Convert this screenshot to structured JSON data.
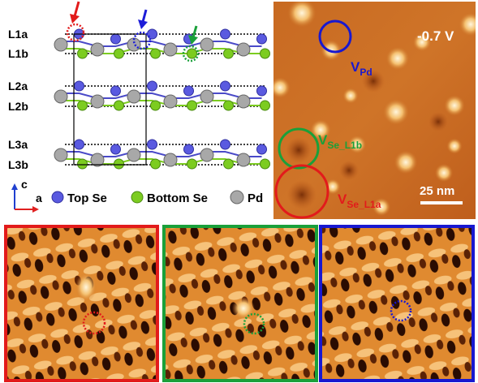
{
  "crystal": {
    "layer_labels": [
      "L1a",
      "L1b",
      "L2a",
      "L2b",
      "L3a",
      "L3b"
    ],
    "axes": [
      "c",
      "a"
    ]
  },
  "legend": [
    "Top Se",
    "Bottom Se",
    "Pd"
  ],
  "stm": {
    "bias": "-0.7 V",
    "scale": "25 nm",
    "vacancies": [
      {
        "symbol": "V",
        "subscript": "Pd"
      },
      {
        "symbol": "V",
        "subscript": "Se_L1b"
      },
      {
        "symbol": "V",
        "subscript": "Se_L1a"
      }
    ]
  }
}
